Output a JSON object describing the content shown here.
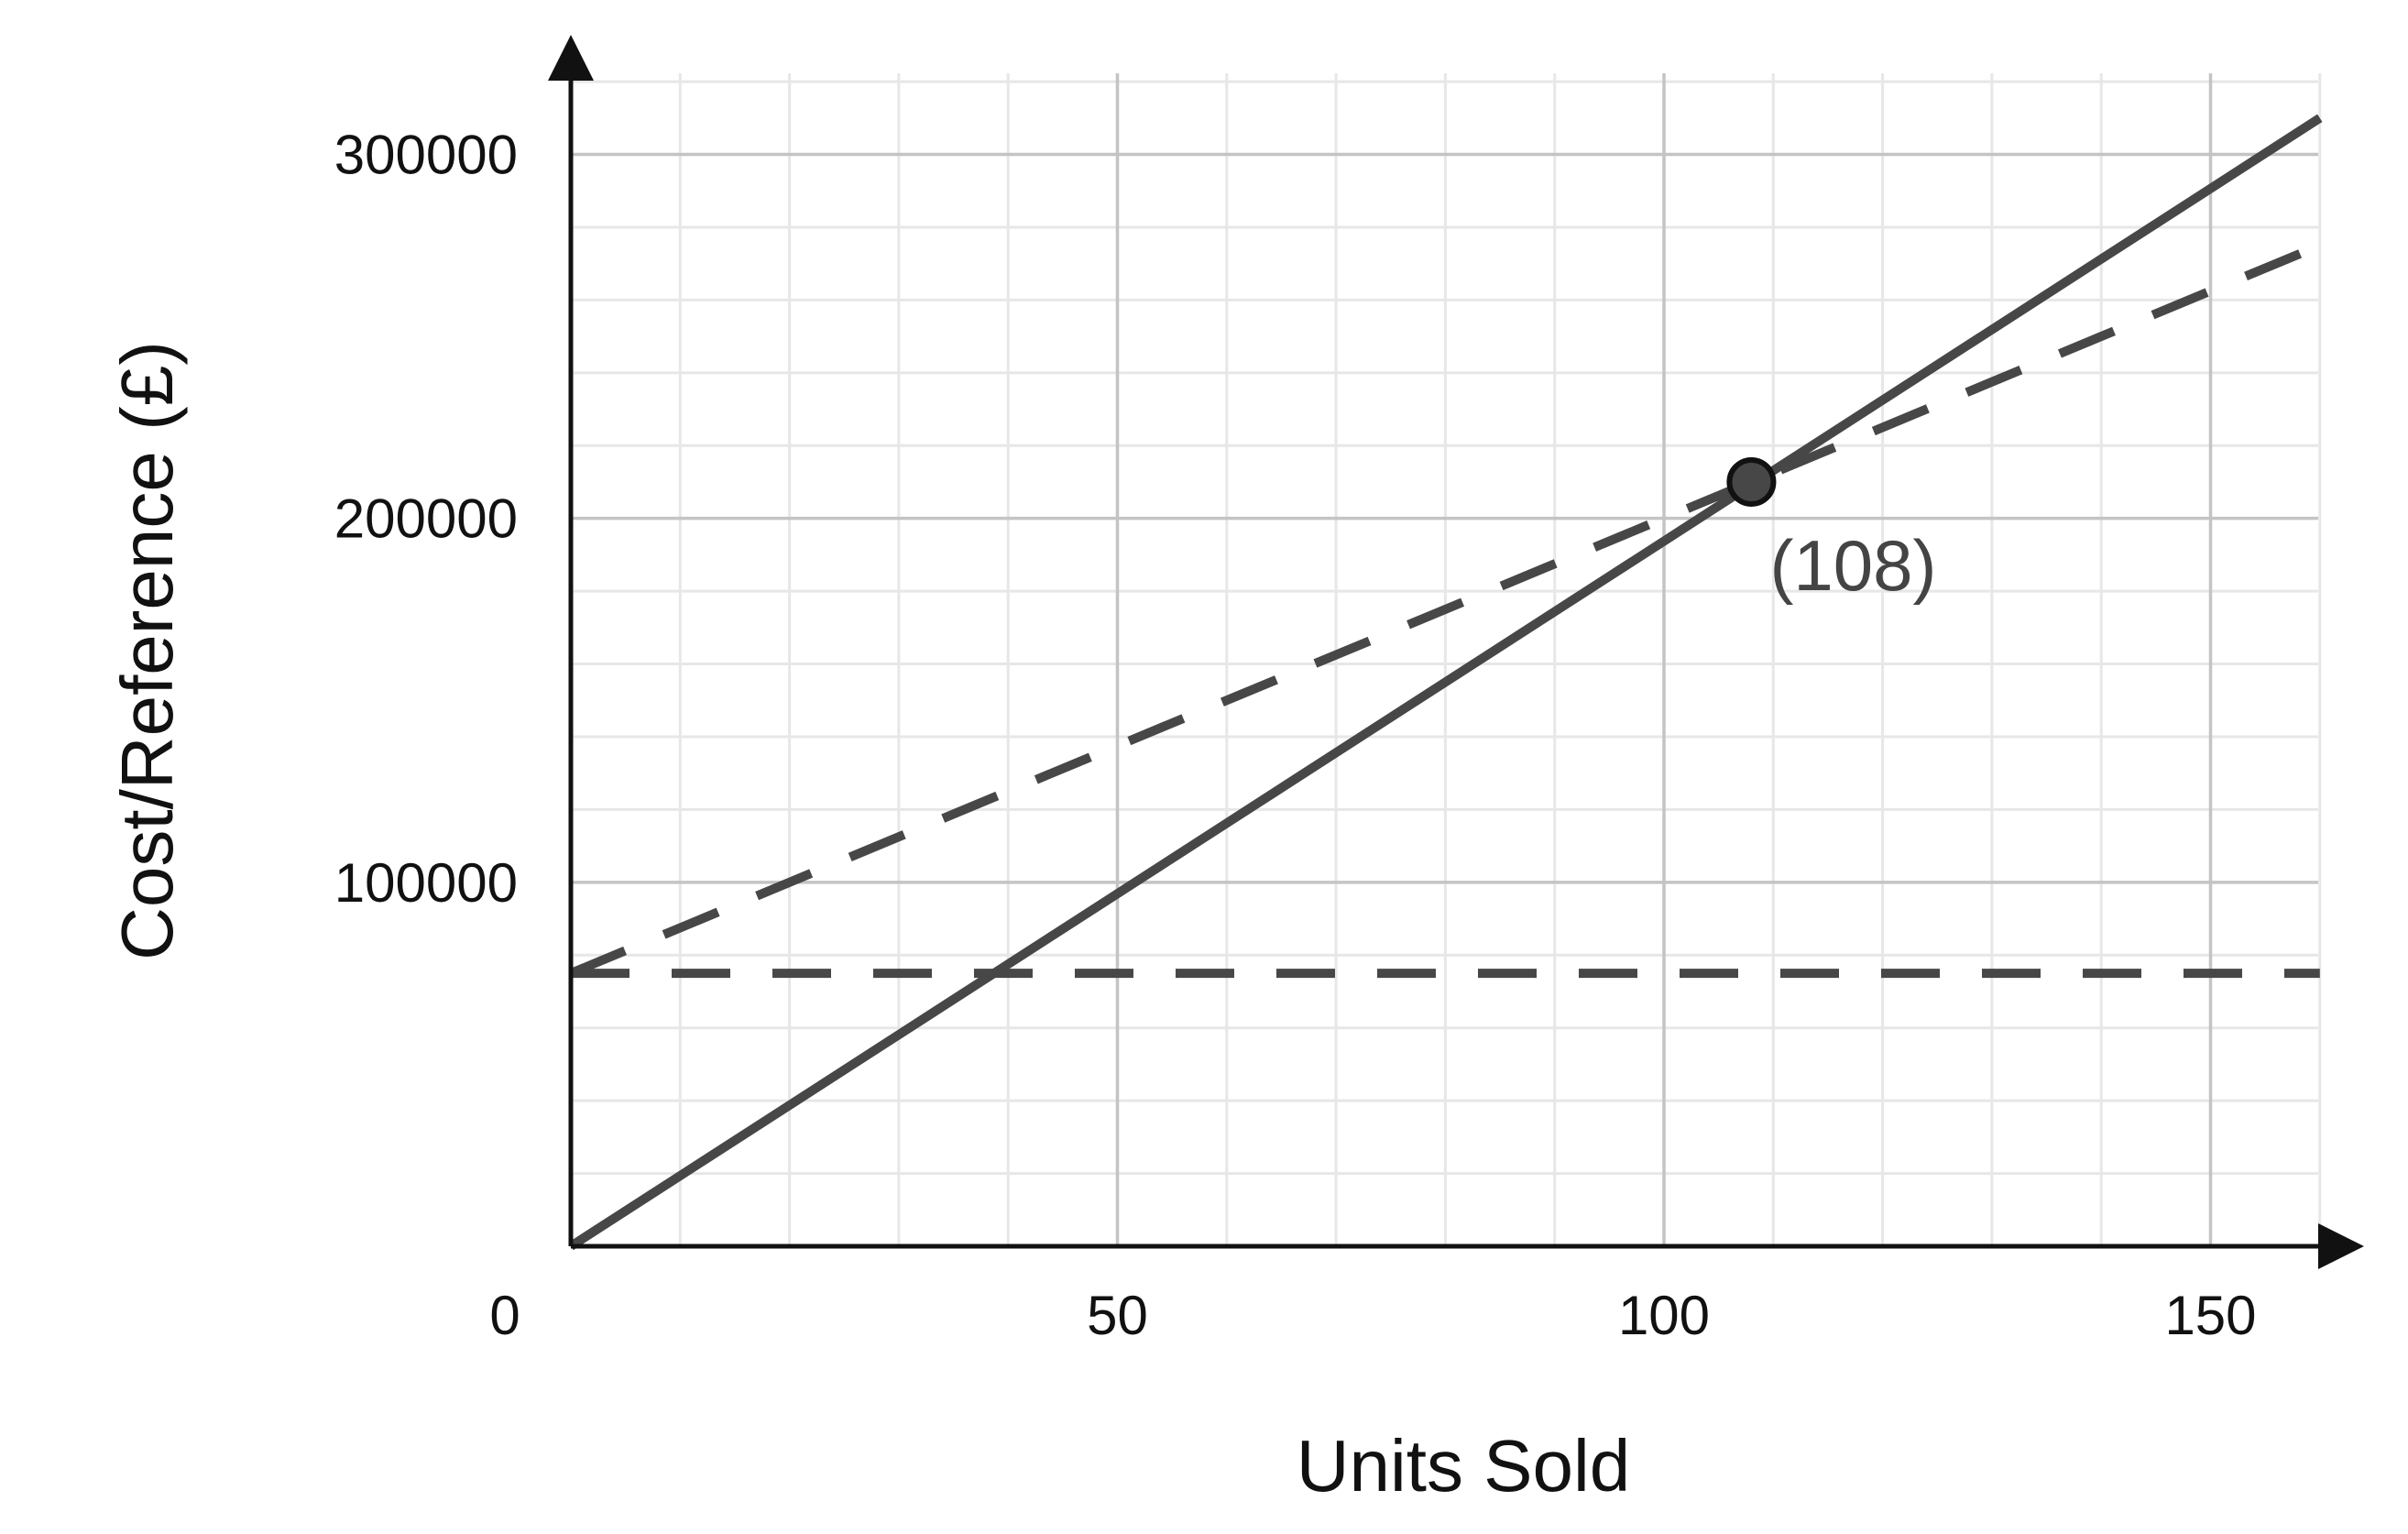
{
  "chart_data": {
    "type": "line",
    "title": "",
    "xlabel": "Units Sold",
    "ylabel": "Cost/Reference (£)",
    "xlim": [
      0,
      160
    ],
    "ylim": [
      0,
      320000
    ],
    "grid": true,
    "x_ticks": [
      {
        "value": 0,
        "label": "0"
      },
      {
        "value": 50,
        "label": "50"
      },
      {
        "value": 100,
        "label": "100"
      },
      {
        "value": 150,
        "label": "150"
      }
    ],
    "y_ticks": [
      {
        "value": 100000,
        "label": "100000"
      },
      {
        "value": 200000,
        "label": "200000"
      },
      {
        "value": 300000,
        "label": "300000"
      }
    ],
    "series": [
      {
        "style": "solid",
        "color": "#474747",
        "points": [
          [
            0,
            0
          ],
          [
            160,
            310000
          ]
        ]
      },
      {
        "style": "dashed",
        "color": "#474747",
        "points": [
          [
            0,
            75000
          ],
          [
            160,
            275000
          ]
        ]
      },
      {
        "style": "dashed",
        "color": "#474747",
        "points": [
          [
            0,
            75000
          ],
          [
            160,
            75000
          ]
        ]
      }
    ],
    "annotations": [
      {
        "x": 108,
        "y": 210000,
        "label": "(108)",
        "color": "#474747"
      }
    ]
  }
}
